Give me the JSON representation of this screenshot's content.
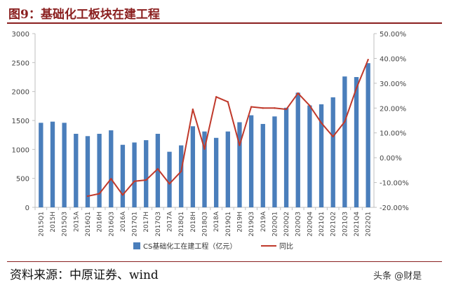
{
  "header": {
    "title": "图9：基础化工板块在建工程"
  },
  "footer": {
    "source": "资料来源：中原证券、wind",
    "watermark": "头条 @财是"
  },
  "colors": {
    "bar": "#4a7ebb",
    "line": "#c0392b",
    "accent": "#8a1f1f",
    "axis_text": "#444444",
    "grid": "#d9d9d9"
  },
  "chart_data": {
    "type": "bar+line",
    "categories": [
      "2015Q1",
      "2015H",
      "2015Q3",
      "2015A",
      "2016Q1",
      "2016H",
      "2016Q3",
      "2016A",
      "2017Q1",
      "2017H",
      "2017Q3",
      "2017A",
      "2018Q1",
      "2018H",
      "2018Q3",
      "2018A",
      "2019Q1",
      "2019H",
      "2019Q3",
      "2019A",
      "2020Q1",
      "2020Q2",
      "2020Q3",
      "2020Q4",
      "2021Q1",
      "2021Q2",
      "2021Q3",
      "2021Q4",
      "2022Q1"
    ],
    "series": [
      {
        "name": "CS基础化工在建工程（亿元）",
        "type": "bar",
        "axis": "left",
        "values": [
          1460,
          1480,
          1460,
          1270,
          1230,
          1270,
          1330,
          1080,
          1120,
          1160,
          1270,
          960,
          1070,
          1400,
          1310,
          1200,
          1310,
          1470,
          1590,
          1440,
          1570,
          1720,
          1980,
          1760,
          1780,
          1900,
          2260,
          2250,
          2490
        ]
      },
      {
        "name": "同比",
        "type": "line",
        "axis": "right",
        "values": [
          null,
          null,
          null,
          null,
          -15.5,
          -14.5,
          -8.5,
          -15.0,
          -9.5,
          -9.0,
          -4.5,
          -10.5,
          -5.5,
          19.5,
          3.5,
          24.5,
          22.5,
          5.0,
          20.5,
          20.0,
          20.0,
          19.5,
          26.0,
          21.0,
          14.0,
          8.5,
          14.5,
          28.0,
          39.5
        ]
      }
    ],
    "y_left": {
      "lim": [
        0,
        3000
      ],
      "ticks": [
        "0",
        "500",
        "1000",
        "1500",
        "2000",
        "2500",
        "3000"
      ]
    },
    "y_right": {
      "lim": [
        -20,
        50
      ],
      "ticks": [
        "-20.00%",
        "-10.00%",
        "0.00%",
        "10.00%",
        "20.00%",
        "30.00%",
        "40.00%",
        "50.00%"
      ]
    },
    "grid": false,
    "legend": "bottom"
  }
}
